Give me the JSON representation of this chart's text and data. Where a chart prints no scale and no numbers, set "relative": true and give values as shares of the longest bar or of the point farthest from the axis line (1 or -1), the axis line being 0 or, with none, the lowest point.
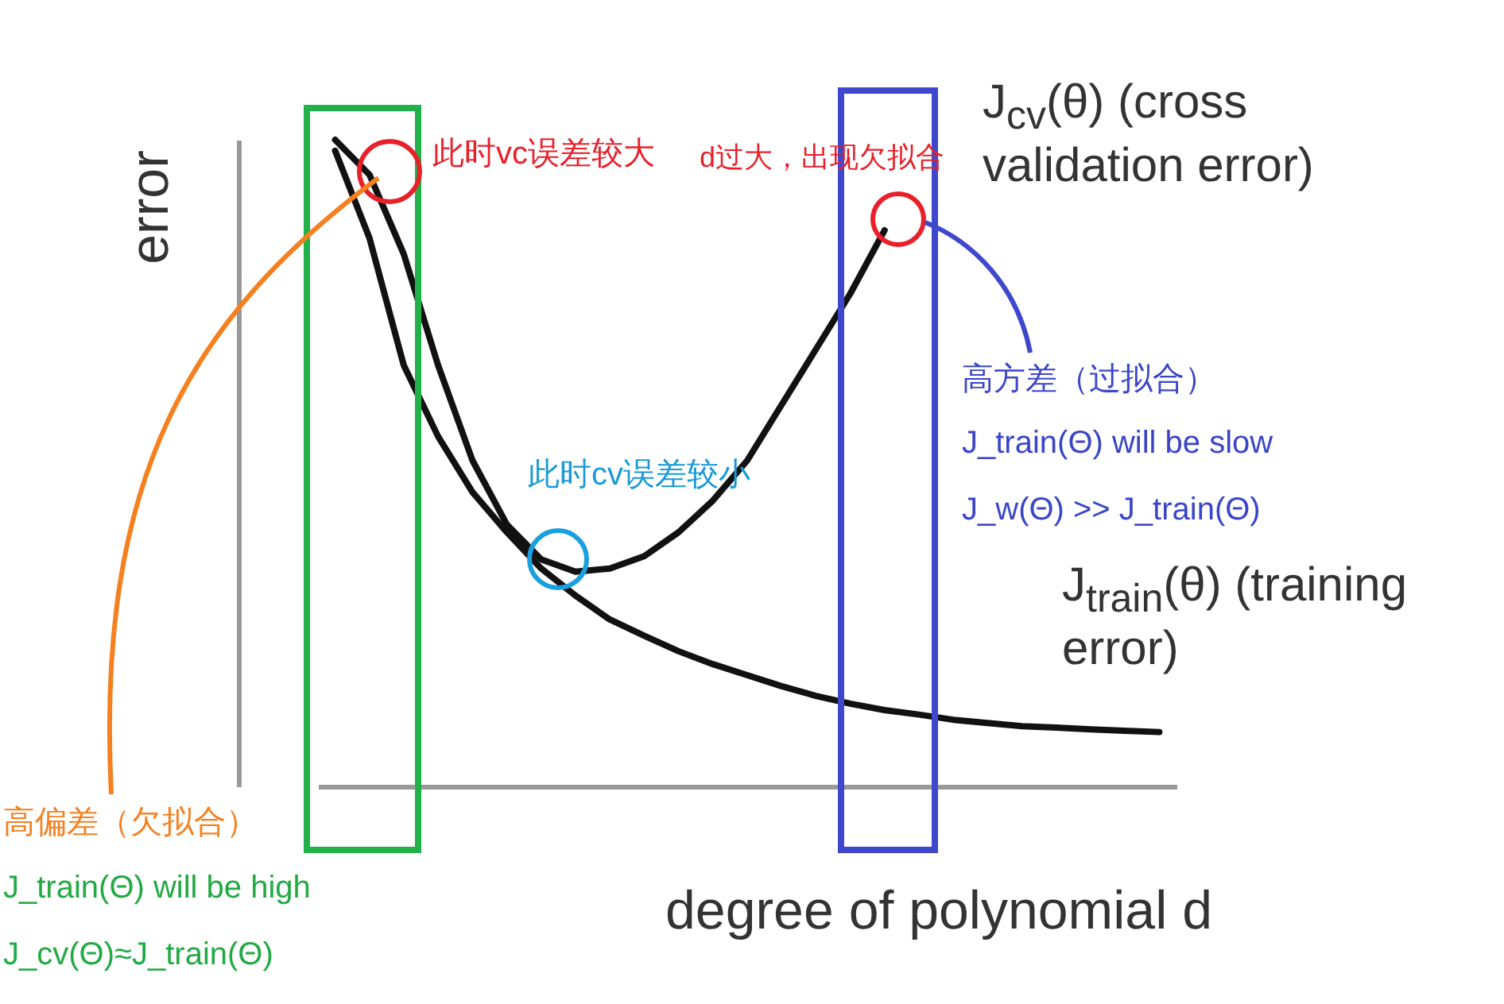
{
  "chart_data": {
    "type": "line",
    "relative": true,
    "xlabel": "degree of polynomial d",
    "ylabel": "error",
    "legend": false,
    "categories": [
      null,
      null,
      null,
      null,
      null,
      null,
      null,
      null,
      null,
      null,
      null,
      null,
      null,
      null,
      null,
      null,
      null,
      null,
      null,
      null,
      null,
      null,
      null,
      null,
      null
    ],
    "series": [
      {
        "name": "J$_{cv}$(θ) (cross validation error)",
        "color": "#111111",
        "values": [
          1.0,
          0.946,
          0.823,
          0.651,
          0.504,
          0.405,
          0.351,
          0.332,
          0.337,
          0.356,
          0.393,
          0.442,
          0.504,
          0.59,
          0.676,
          0.762,
          0.86,
          null,
          null,
          null,
          null,
          null,
          null,
          null,
          null
        ]
      },
      {
        "name": "J$_{train}$(θ) (training error)",
        "color": "#111111",
        "values": [
          0.983,
          0.848,
          0.651,
          0.541,
          0.455,
          0.393,
          0.337,
          0.295,
          0.258,
          0.233,
          0.209,
          0.189,
          0.172,
          0.155,
          0.14,
          0.128,
          0.118,
          0.111,
          0.103,
          0.098,
          0.093,
          0.091,
          0.088,
          0.086,
          0.084
        ]
      }
    ],
    "annotations": [
      "此时vc误差较大",
      "d过大，出现欠拟合",
      "此时cv误差较小",
      "高方差（过拟合）",
      "J_train(Θ) will be slow",
      "J_w(Θ) >> J_train(Θ)",
      "高偏差（欠拟合）",
      "J_train(Θ) will be high",
      "J_cv(Θ)≈J_train(Θ)"
    ]
  }
}
